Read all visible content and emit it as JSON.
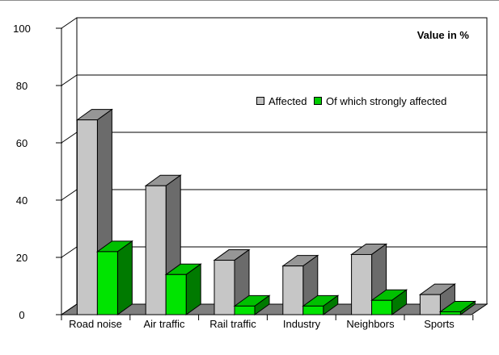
{
  "chart_data": {
    "type": "bar",
    "variant": "3d-clustered-column",
    "title": "Value in %",
    "categories": [
      "Road noise",
      "Air traffic",
      "Rail traffic",
      "Industry",
      "Neighbors",
      "Sports"
    ],
    "series": [
      {
        "key": "affected",
        "name": "Affected",
        "values": [
          68,
          45,
          19,
          17,
          21,
          7
        ],
        "front_color": "#c6c6c6",
        "top_color": "#969696",
        "side_color": "#6b6b6b",
        "legend_color": "#c0c0c0"
      },
      {
        "key": "strongly-affected",
        "name": "Of which strongly affected",
        "values": [
          22,
          14,
          3,
          3,
          5,
          1
        ],
        "front_color": "#00e400",
        "top_color": "#00c000",
        "side_color": "#007a00",
        "legend_color": "#00cc00"
      }
    ],
    "xlabel": "",
    "ylabel": "",
    "ylim": [
      0,
      100
    ],
    "y_ticks": [
      0,
      20,
      40,
      60,
      80,
      100
    ],
    "grid": "horizontal-back-wall",
    "legend_position": "inside-top-center",
    "wall_color": "#ffffff",
    "floor_color": "#7f7f7f",
    "outline_color": "#000000"
  }
}
